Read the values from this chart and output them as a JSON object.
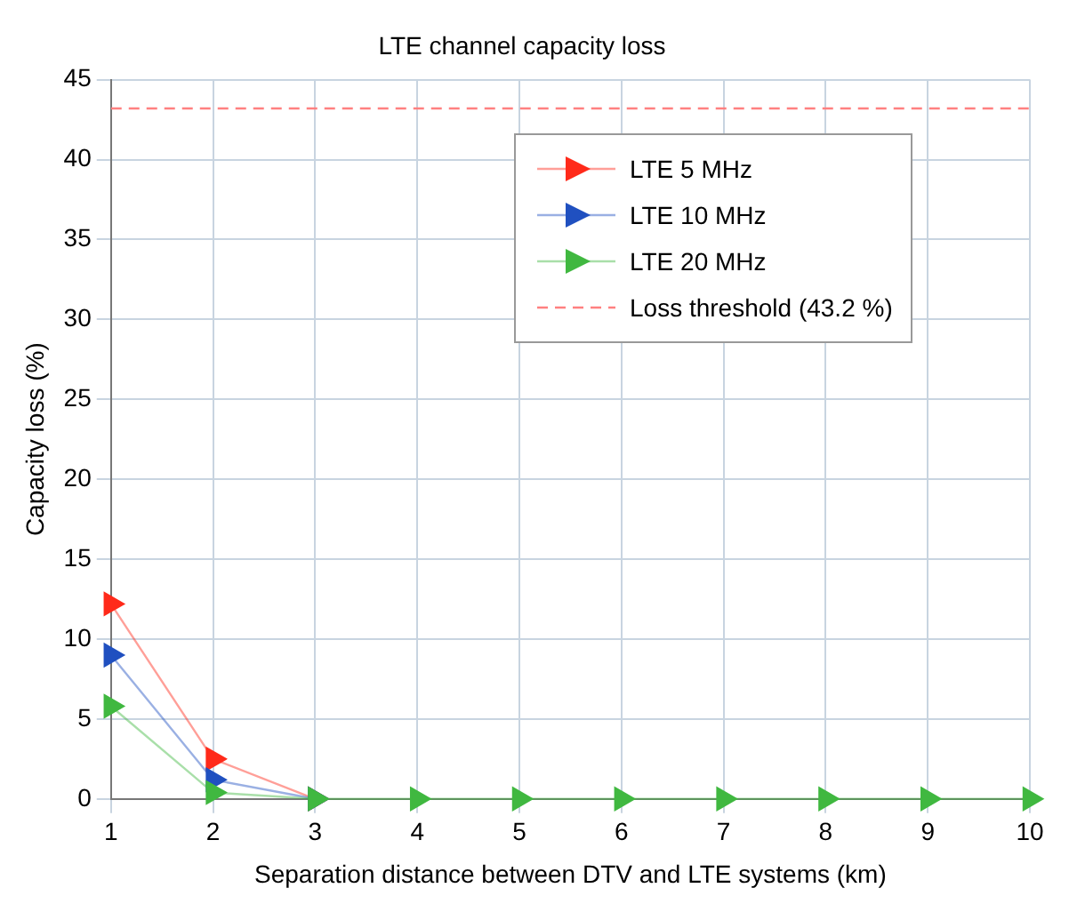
{
  "chart_data": {
    "type": "line",
    "title": "LTE channel capacity loss",
    "xlabel": "Separation distance between DTV and LTE systems (km)",
    "ylabel": "Capacity loss (%)",
    "x": [
      1,
      2,
      3,
      4,
      5,
      6,
      7,
      8,
      9,
      10
    ],
    "series": [
      {
        "name": "LTE 5 MHz",
        "color": "#ff2a1a",
        "values": [
          12.2,
          2.5,
          0,
          null,
          null,
          null,
          null,
          null,
          null,
          null
        ]
      },
      {
        "name": "LTE 10 MHz",
        "color": "#2050c0",
        "values": [
          9,
          1.2,
          0,
          null,
          null,
          null,
          null,
          null,
          null,
          null
        ]
      },
      {
        "name": "LTE 20 MHz",
        "color": "#40b840",
        "values": [
          5.8,
          0.4,
          0,
          0,
          0,
          0,
          0,
          0,
          0,
          0
        ]
      }
    ],
    "ref_lines": [
      {
        "axis": "y",
        "value": 43.2,
        "label": "Loss threshold (43.2 %)",
        "color": "#ff8080",
        "line_style": "dashed"
      }
    ],
    "xlim": [
      1,
      10
    ],
    "xticks": [
      1,
      2,
      3,
      4,
      5,
      6,
      7,
      8,
      9,
      10
    ],
    "ylim": [
      0,
      45
    ],
    "yticks": [
      0,
      5,
      10,
      15,
      20,
      25,
      30,
      35,
      40,
      45
    ],
    "grid": true,
    "legend": "top right",
    "marker": "triangle",
    "line_style": "solid"
  }
}
